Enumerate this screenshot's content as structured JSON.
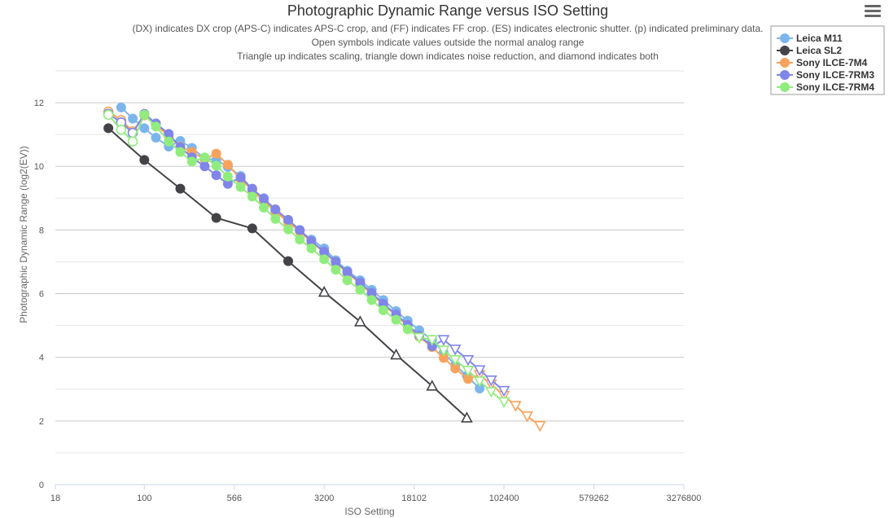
{
  "menu": {
    "icon": "hamburger-menu-icon"
  },
  "chart_data": {
    "type": "line",
    "title": "Photographic Dynamic Range versus ISO Setting",
    "subtitle": [
      "(DX) indicates DX crop (APS-C) indicates APS-C crop, and (FF) indicates FF crop. (ES) indicates electronic shutter. (p) indicated preliminary data.",
      "Open symbols indicate values outside the normal analog range",
      "Triangle up indicates scaling, triangle down indicates noise reduction, and diamond indicates both"
    ],
    "xlabel": "ISO Setting",
    "ylabel": "Photographic Dynamic Range (log2(EV))",
    "x_scale": "log",
    "xlim": [
      18,
      3276800
    ],
    "ylim": [
      0,
      13
    ],
    "x_ticks": [
      18,
      100,
      566,
      3200,
      18102,
      102400,
      579262,
      3276800
    ],
    "y_ticks": [
      0,
      2,
      4,
      6,
      8,
      10,
      12
    ],
    "grid": true,
    "legend_position": "top-right",
    "series": [
      {
        "name": "Leica M11",
        "color": "#7cb5ec",
        "marker": "circle",
        "points": [
          {
            "x": 64,
            "y": 11.85
          },
          {
            "x": 80,
            "y": 11.5
          },
          {
            "x": 100,
            "y": 11.2
          },
          {
            "x": 125,
            "y": 10.9
          },
          {
            "x": 160,
            "y": 10.62
          },
          {
            "x": 200,
            "y": 10.8
          },
          {
            "x": 250,
            "y": 10.58
          },
          {
            "x": 320,
            "y": 10.25
          },
          {
            "x": 400,
            "y": 10.2
          },
          {
            "x": 500,
            "y": 9.98
          },
          {
            "x": 640,
            "y": 9.7
          },
          {
            "x": 800,
            "y": 9.28
          },
          {
            "x": 1000,
            "y": 9.0
          },
          {
            "x": 1250,
            "y": 8.6
          },
          {
            "x": 1600,
            "y": 8.28
          },
          {
            "x": 2000,
            "y": 7.98
          },
          {
            "x": 2500,
            "y": 7.7
          },
          {
            "x": 3200,
            "y": 7.42
          },
          {
            "x": 4000,
            "y": 7.05
          },
          {
            "x": 5000,
            "y": 6.72
          },
          {
            "x": 6400,
            "y": 6.42
          },
          {
            "x": 8000,
            "y": 6.12
          },
          {
            "x": 10000,
            "y": 5.8
          },
          {
            "x": 12800,
            "y": 5.45
          },
          {
            "x": 16000,
            "y": 5.15
          },
          {
            "x": 20000,
            "y": 4.85
          },
          {
            "x": 25600,
            "y": 4.55
          },
          {
            "x": 32000,
            "y": 4.15
          },
          {
            "x": 40000,
            "y": 3.75
          },
          {
            "x": 50000,
            "y": 3.42
          },
          {
            "x": 64000,
            "y": 3.02
          }
        ]
      },
      {
        "name": "Leica SL2",
        "color": "#434348",
        "marker": "circle",
        "points": [
          {
            "x": 50,
            "y": 11.2
          },
          {
            "x": 100,
            "y": 10.2
          },
          {
            "x": 200,
            "y": 9.3
          },
          {
            "x": 400,
            "y": 8.38
          },
          {
            "x": 800,
            "y": 8.05
          },
          {
            "x": 1600,
            "y": 7.02
          },
          {
            "x": 3200,
            "y": 6.05,
            "marker": "triangle-up",
            "open": true
          },
          {
            "x": 6400,
            "y": 5.12,
            "marker": "triangle-up",
            "open": true
          },
          {
            "x": 12800,
            "y": 4.08,
            "marker": "triangle-up",
            "open": true
          },
          {
            "x": 25600,
            "y": 3.1,
            "marker": "triangle-up",
            "open": true
          },
          {
            "x": 50000,
            "y": 2.1,
            "marker": "triangle-up",
            "open": true
          }
        ]
      },
      {
        "name": "Sony ILCE-7M4",
        "color": "#f7a35c",
        "marker": "circle",
        "points": [
          {
            "x": 50,
            "y": 11.72,
            "open": true
          },
          {
            "x": 64,
            "y": 11.45,
            "open": true
          },
          {
            "x": 80,
            "y": 11.1,
            "open": true
          },
          {
            "x": 100,
            "y": 11.6
          },
          {
            "x": 125,
            "y": 11.3
          },
          {
            "x": 160,
            "y": 10.95
          },
          {
            "x": 200,
            "y": 10.62
          },
          {
            "x": 250,
            "y": 10.45
          },
          {
            "x": 320,
            "y": 10.22
          },
          {
            "x": 400,
            "y": 10.4
          },
          {
            "x": 500,
            "y": 10.05
          },
          {
            "x": 640,
            "y": 9.6
          },
          {
            "x": 800,
            "y": 9.25
          },
          {
            "x": 1000,
            "y": 8.9
          },
          {
            "x": 1250,
            "y": 8.58
          },
          {
            "x": 1600,
            "y": 8.25
          },
          {
            "x": 2000,
            "y": 7.95
          },
          {
            "x": 2500,
            "y": 7.62
          },
          {
            "x": 3200,
            "y": 7.3
          },
          {
            "x": 4000,
            "y": 6.98
          },
          {
            "x": 5000,
            "y": 6.65
          },
          {
            "x": 6400,
            "y": 6.32
          },
          {
            "x": 8000,
            "y": 5.98
          },
          {
            "x": 10000,
            "y": 5.65
          },
          {
            "x": 12800,
            "y": 5.32
          },
          {
            "x": 16000,
            "y": 4.98
          },
          {
            "x": 20000,
            "y": 4.65
          },
          {
            "x": 25600,
            "y": 4.32
          },
          {
            "x": 32000,
            "y": 3.98
          },
          {
            "x": 40000,
            "y": 3.65
          },
          {
            "x": 51200,
            "y": 3.32
          },
          {
            "x": 64000,
            "y": 3.45,
            "marker": "triangle-down",
            "open": true
          },
          {
            "x": 80000,
            "y": 3.15,
            "marker": "triangle-down",
            "open": true
          },
          {
            "x": 102400,
            "y": 2.8,
            "marker": "triangle-down",
            "open": true
          },
          {
            "x": 128000,
            "y": 2.48,
            "marker": "triangle-down",
            "open": true
          },
          {
            "x": 160000,
            "y": 2.15,
            "marker": "triangle-down",
            "open": true
          },
          {
            "x": 204800,
            "y": 1.85,
            "marker": "triangle-down",
            "open": true
          }
        ]
      },
      {
        "name": "Sony ILCE-7RM3",
        "color": "#8085e9",
        "marker": "circle",
        "points": [
          {
            "x": 50,
            "y": 11.65,
            "open": true
          },
          {
            "x": 64,
            "y": 11.38,
            "open": true
          },
          {
            "x": 80,
            "y": 11.05,
            "open": true
          },
          {
            "x": 100,
            "y": 11.65
          },
          {
            "x": 125,
            "y": 11.35
          },
          {
            "x": 160,
            "y": 11.02
          },
          {
            "x": 200,
            "y": 10.6
          },
          {
            "x": 250,
            "y": 10.28
          },
          {
            "x": 320,
            "y": 10.0
          },
          {
            "x": 400,
            "y": 9.72
          },
          {
            "x": 500,
            "y": 9.45
          },
          {
            "x": 640,
            "y": 9.65
          },
          {
            "x": 800,
            "y": 9.3
          },
          {
            "x": 1000,
            "y": 8.98
          },
          {
            "x": 1250,
            "y": 8.65
          },
          {
            "x": 1600,
            "y": 8.32
          },
          {
            "x": 2000,
            "y": 8.0
          },
          {
            "x": 2500,
            "y": 7.65
          },
          {
            "x": 3200,
            "y": 7.32
          },
          {
            "x": 4000,
            "y": 7.0
          },
          {
            "x": 5000,
            "y": 6.68
          },
          {
            "x": 6400,
            "y": 6.35
          },
          {
            "x": 8000,
            "y": 6.02
          },
          {
            "x": 10000,
            "y": 5.68
          },
          {
            "x": 12800,
            "y": 5.35
          },
          {
            "x": 16000,
            "y": 5.02
          },
          {
            "x": 20000,
            "y": 4.68
          },
          {
            "x": 25600,
            "y": 4.35
          },
          {
            "x": 32000,
            "y": 4.55,
            "marker": "triangle-down",
            "open": true
          },
          {
            "x": 40000,
            "y": 4.25,
            "marker": "triangle-down",
            "open": true
          },
          {
            "x": 51200,
            "y": 3.92,
            "marker": "triangle-down",
            "open": true
          },
          {
            "x": 64000,
            "y": 3.6,
            "marker": "triangle-down",
            "open": true
          },
          {
            "x": 80000,
            "y": 3.28,
            "marker": "triangle-down",
            "open": true
          },
          {
            "x": 102400,
            "y": 2.95,
            "marker": "triangle-down",
            "open": true
          }
        ]
      },
      {
        "name": "Sony ILCE-7RM4",
        "color": "#90ed7d",
        "marker": "circle",
        "points": [
          {
            "x": 50,
            "y": 11.62,
            "open": true
          },
          {
            "x": 64,
            "y": 11.15,
            "open": true
          },
          {
            "x": 80,
            "y": 10.78,
            "open": true
          },
          {
            "x": 100,
            "y": 11.62
          },
          {
            "x": 125,
            "y": 11.25
          },
          {
            "x": 160,
            "y": 10.78
          },
          {
            "x": 200,
            "y": 10.45
          },
          {
            "x": 250,
            "y": 10.15
          },
          {
            "x": 320,
            "y": 10.28
          },
          {
            "x": 400,
            "y": 10.02
          },
          {
            "x": 500,
            "y": 9.68
          },
          {
            "x": 640,
            "y": 9.35
          },
          {
            "x": 800,
            "y": 9.05
          },
          {
            "x": 1000,
            "y": 8.7
          },
          {
            "x": 1250,
            "y": 8.35
          },
          {
            "x": 1600,
            "y": 8.02
          },
          {
            "x": 2000,
            "y": 7.7
          },
          {
            "x": 2500,
            "y": 7.42
          },
          {
            "x": 3200,
            "y": 7.08
          },
          {
            "x": 4000,
            "y": 6.75
          },
          {
            "x": 5000,
            "y": 6.42
          },
          {
            "x": 6400,
            "y": 6.12
          },
          {
            "x": 8000,
            "y": 5.8
          },
          {
            "x": 10000,
            "y": 5.48
          },
          {
            "x": 12800,
            "y": 5.18
          },
          {
            "x": 16000,
            "y": 4.88
          },
          {
            "x": 20000,
            "y": 4.62,
            "marker": "triangle-down",
            "open": true
          },
          {
            "x": 25600,
            "y": 4.55,
            "marker": "triangle-down",
            "open": true
          },
          {
            "x": 32000,
            "y": 4.22,
            "marker": "triangle-down",
            "open": true
          },
          {
            "x": 40000,
            "y": 3.92,
            "marker": "triangle-down",
            "open": true
          },
          {
            "x": 51200,
            "y": 3.58,
            "marker": "triangle-down",
            "open": true
          },
          {
            "x": 64000,
            "y": 3.25,
            "marker": "triangle-down",
            "open": true
          },
          {
            "x": 80000,
            "y": 2.92,
            "marker": "triangle-down",
            "open": true
          },
          {
            "x": 102400,
            "y": 2.6,
            "marker": "triangle-down",
            "open": true
          }
        ]
      }
    ]
  }
}
